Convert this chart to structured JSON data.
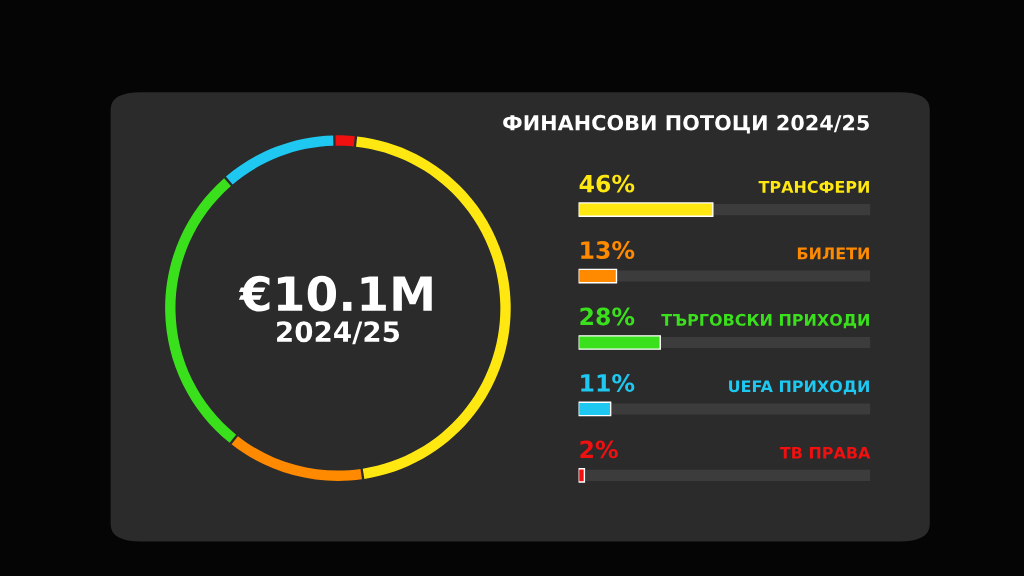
{
  "chart_data": [
    {
      "type": "donut",
      "categories": [
        null,
        null,
        null,
        null,
        null
      ],
      "values": [
        46,
        13,
        28,
        11,
        2
      ],
      "colors": [
        "#ffe812",
        "#ff8a00",
        "#3be01c",
        "#1ec8f0",
        "#f01010"
      ],
      "annotations": [
        "€10.1M",
        "2024/25"
      ]
    },
    {
      "type": "bar",
      "orientation": "horizontal",
      "title": "ФИНАНСОВИ ПОТОЦИ 2024/25",
      "categories": [
        "ТРАНСФЕРИ",
        "БИЛЕТИ",
        "ТЪРГОВСКИ ПРИХОДИ",
        "UEFA ПРИХОДИ",
        "ТВ ПРАВА"
      ],
      "values": [
        46,
        13,
        28,
        11,
        2
      ],
      "colors": [
        "#ffe812",
        "#ff8a00",
        "#3be01c",
        "#1ec8f0",
        "#f01010"
      ],
      "value_labels": [
        "46%",
        "13%",
        "28%",
        "11%",
        "2%"
      ],
      "xlim": [
        0,
        100
      ],
      "tick_labels": false
    }
  ]
}
